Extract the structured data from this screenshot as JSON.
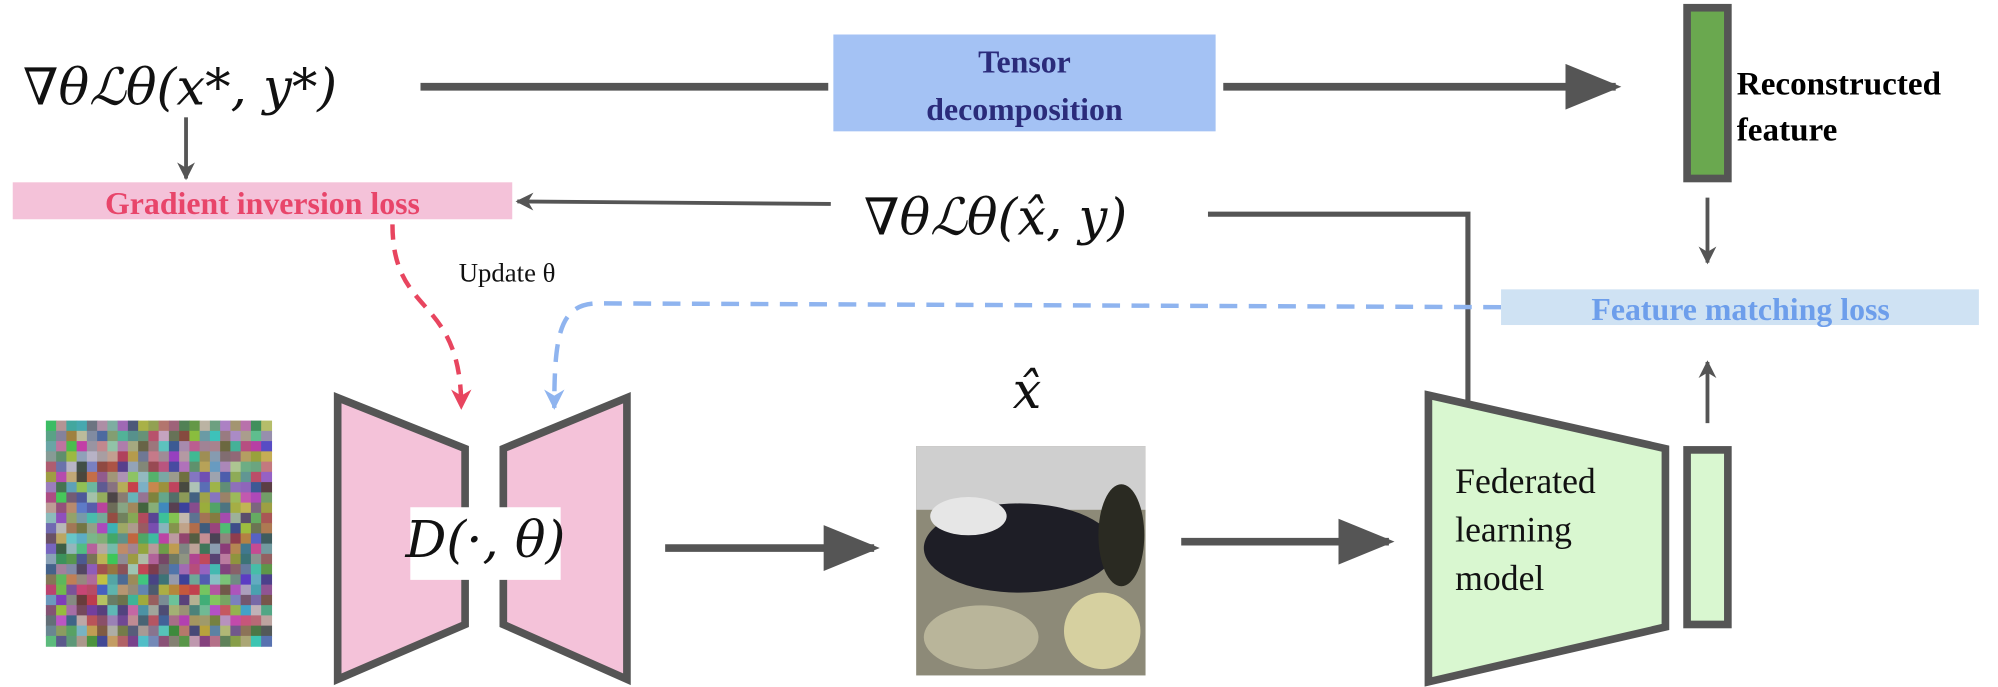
{
  "formulas": {
    "real_gradient": "∇θℒθ(x*, y*)",
    "dummy_gradient": "∇θℒθ(x̂, y)",
    "generator": "D(·, θ)",
    "x_hat": "x̂"
  },
  "nodes": {
    "tensor_decomposition": [
      "Tensor",
      "decomposition"
    ],
    "reconstructed_feature": [
      "Reconstructed",
      "feature"
    ],
    "gradient_inversion_loss": "Gradient inversion loss",
    "feature_matching_loss": "Feature matching loss",
    "federated_model": [
      "Federated",
      "learning",
      "model"
    ],
    "update": "Update θ"
  }
}
